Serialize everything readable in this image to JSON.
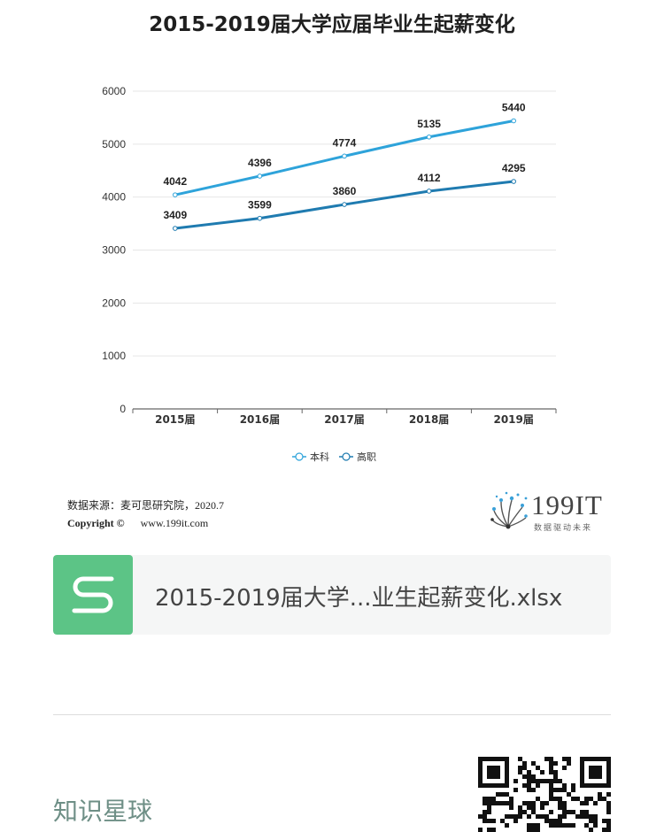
{
  "chart_data": {
    "type": "line",
    "title": "2015-2019届大学应届毕业生起薪变化",
    "categories": [
      "2015届",
      "2016届",
      "2017届",
      "2018届",
      "2019届"
    ],
    "series": [
      {
        "name": "本科",
        "values": [
          4042,
          4396,
          4774,
          5135,
          5440
        ],
        "color": "#2ea3da"
      },
      {
        "name": "高职",
        "values": [
          3409,
          3599,
          3860,
          4112,
          4295
        ],
        "color": "#1f7bb0"
      }
    ],
    "yticks": [
      0,
      1000,
      2000,
      3000,
      4000,
      5000,
      6000
    ],
    "ylim": [
      0,
      6000
    ],
    "grid": true,
    "legend": "bottom"
  },
  "source": {
    "line1": "数据来源：麦可思研究院，2020.7",
    "copyright": "Copyright ©",
    "url": "www.199it.com"
  },
  "logo": {
    "text": "199IT",
    "sub": "数据驱动未来"
  },
  "file": {
    "name": "2015-2019届大学...业生起薪变化.xlsx",
    "icon": "spreadsheet-s-icon",
    "icon_color": "#5cc486"
  },
  "footer": {
    "label": "知识星球",
    "qr": "qr-code"
  }
}
